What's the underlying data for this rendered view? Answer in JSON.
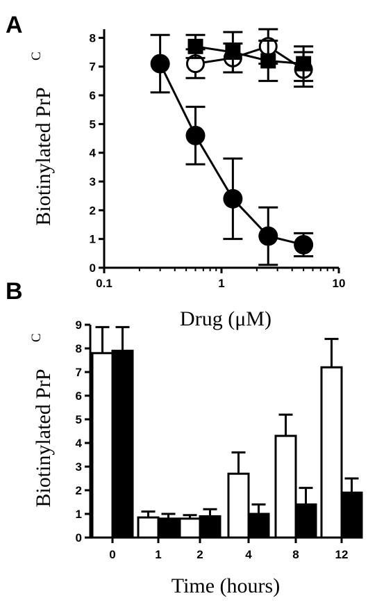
{
  "chart_data": [
    {
      "panel": "A",
      "type": "line",
      "xscale": "log",
      "xlim": [
        0.1,
        10
      ],
      "ylim": [
        0,
        8.3
      ],
      "xticks": [
        0.1,
        1,
        10
      ],
      "xtick_labels": [
        "0.1",
        "1",
        "10"
      ],
      "yticks": [
        0,
        1,
        2,
        3,
        4,
        5,
        6,
        7,
        8
      ],
      "ytick_labels": [
        "0",
        "1",
        "2",
        "3",
        "4",
        "5",
        "6",
        "7",
        "8"
      ],
      "xlabel": "Drug (μM)",
      "ylabel": "Biotinylated PrP",
      "ylabel_sup": "C",
      "series": [
        {
          "marker": "filled-circle",
          "x": [
            0.3,
            0.6,
            1.25,
            2.5,
            5
          ],
          "y": [
            7.1,
            4.6,
            2.4,
            1.1,
            0.8
          ],
          "err": [
            1.0,
            1.0,
            1.4,
            1.0,
            0.4
          ]
        },
        {
          "marker": "open-circle",
          "x": [
            0.6,
            1.25,
            2.5,
            5
          ],
          "y": [
            7.1,
            7.3,
            7.7,
            6.9
          ],
          "err": [
            0.5,
            0.5,
            0.6,
            0.6
          ]
        },
        {
          "marker": "filled-square",
          "x": [
            0.6,
            1.25,
            2.5,
            5
          ],
          "y": [
            7.7,
            7.5,
            7.2,
            7.1
          ],
          "err": [
            0.4,
            0.7,
            0.7,
            0.6
          ]
        }
      ]
    },
    {
      "panel": "B",
      "type": "bar",
      "categories": [
        "0",
        "1",
        "2",
        "4",
        "8",
        "12"
      ],
      "ylim": [
        0,
        9
      ],
      "yticks": [
        0,
        1,
        2,
        3,
        4,
        5,
        6,
        7,
        8,
        9
      ],
      "ytick_labels": [
        "0",
        "1",
        "2",
        "3",
        "4",
        "5",
        "6",
        "7",
        "8",
        "9"
      ],
      "xlabel": "Time (hours)",
      "ylabel": "Biotinylated PrP",
      "ylabel_sup": "C",
      "series": [
        {
          "fill": "#ffffff",
          "values": [
            7.8,
            0.85,
            0.8,
            2.7,
            4.3,
            7.2
          ],
          "err": [
            1.1,
            0.25,
            0.15,
            0.9,
            0.9,
            1.2
          ]
        },
        {
          "fill": "#000000",
          "values": [
            7.9,
            0.8,
            0.9,
            1.0,
            1.4,
            1.9
          ],
          "err": [
            1.0,
            0.2,
            0.3,
            0.4,
            0.7,
            0.6
          ]
        }
      ]
    }
  ]
}
